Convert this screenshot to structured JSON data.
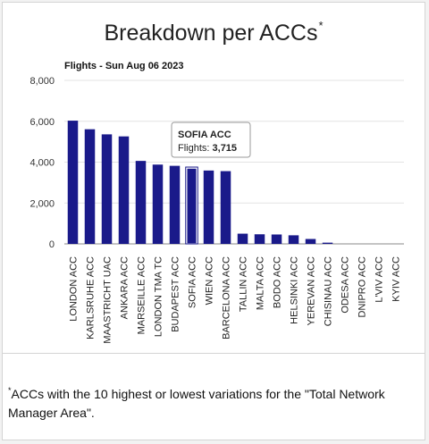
{
  "header": {
    "title": "Breakdown per ACCs",
    "title_mark": "*"
  },
  "footnote": {
    "mark": "*",
    "text": "ACCs with the 10 highest or lowest variations for the \"Total Network Manager Area\"."
  },
  "tooltip": {
    "title": "SOFIA ACC",
    "label": "Flights: ",
    "value": "3,715",
    "category_index": 7
  },
  "colors": {
    "bar": "#1a1a8a",
    "bar_highlight": "#1a1a8a",
    "grid": "#e3e3e3",
    "axis": "#888888"
  },
  "chart_data": {
    "type": "bar",
    "title": "Flights - Sun Aug 06 2023",
    "xlabel": "",
    "ylabel": "",
    "ylim": [
      0,
      8000
    ],
    "yticks": [
      0,
      2000,
      4000,
      6000,
      8000
    ],
    "ytick_labels": [
      "0",
      "2,000",
      "4,000",
      "6,000",
      "8,000"
    ],
    "grid": true,
    "categories": [
      "LONDON ACC",
      "KARLSRUHE ACC",
      "MAASTRICHT UAC",
      "ANKARA ACC",
      "MARSEILLE ACC",
      "LONDON TMA TC",
      "BUDAPEST ACC",
      "SOFIA ACC",
      "WIEN ACC",
      "BARCELONA ACC",
      "TALLIN ACC",
      "MALTA ACC",
      "BODO ACC",
      "HELSINKI ACC",
      "YEREVAN ACC",
      "CHISINAU ACC",
      "ODESA ACC",
      "DNIPRO ACC",
      "L'VIV ACC",
      "KYIV ACC"
    ],
    "values": [
      6030,
      5610,
      5360,
      5260,
      4060,
      3880,
      3820,
      3715,
      3590,
      3560,
      500,
      470,
      460,
      420,
      240,
      60,
      0,
      0,
      0,
      0
    ]
  }
}
